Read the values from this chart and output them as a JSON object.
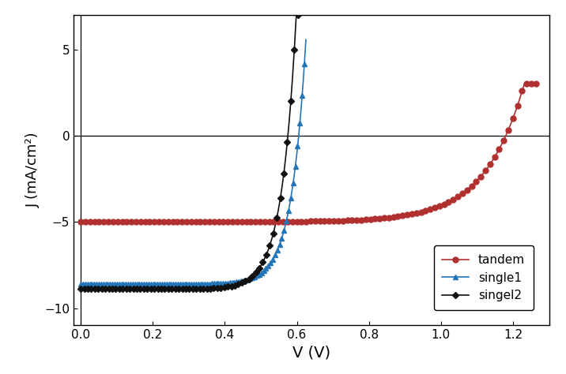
{
  "title": "",
  "xlabel": "V (V)",
  "ylabel": "J (mA/cm²)",
  "xlim": [
    -0.02,
    1.3
  ],
  "ylim": [
    -11,
    7
  ],
  "xticks": [
    0.0,
    0.2,
    0.4,
    0.6,
    0.8,
    1.0,
    1.2
  ],
  "yticks": [
    -10,
    -5,
    0,
    5
  ],
  "legend_labels": [
    "tandem",
    "single1",
    "singel2"
  ],
  "tandem": {
    "color": "#b03030",
    "marker": "o",
    "markersize": 5,
    "linewidth": 1.2,
    "Jsc": -5.0,
    "Voc": 1.18,
    "n_ideality": 4.2,
    "marker_every": 2
  },
  "single1": {
    "color": "#2475b8",
    "marker": "^",
    "markersize": 4.5,
    "linewidth": 1.2,
    "Jsc": -8.6,
    "Voc": 0.605,
    "n_ideality": 1.55,
    "marker_every": 3
  },
  "single2": {
    "color": "#111111",
    "marker": "D",
    "markersize": 4,
    "linewidth": 1.2,
    "Jsc": -8.9,
    "Voc": 0.575,
    "n_ideality": 1.55,
    "marker_every": 4
  }
}
